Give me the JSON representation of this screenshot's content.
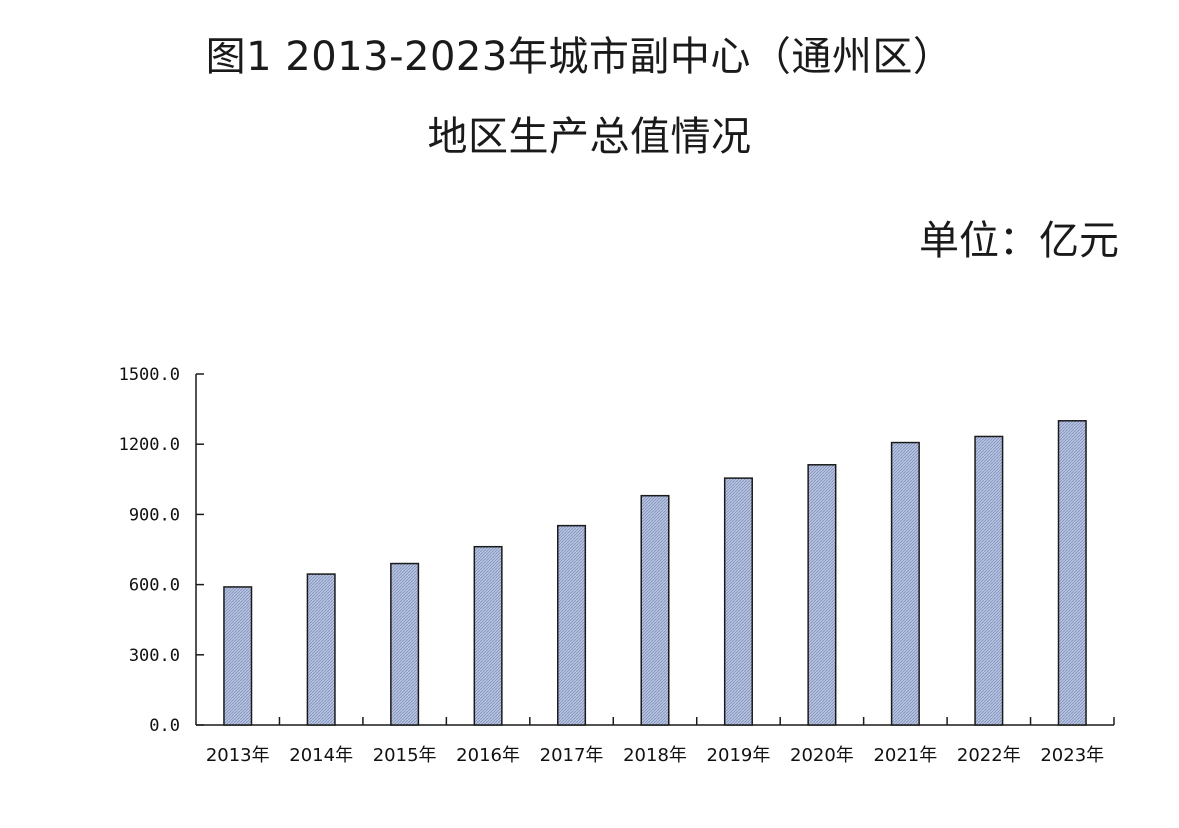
{
  "header": {
    "title_line1": "图1  2013-2023年城市副中心（通州区）",
    "title_line2": "地区生产总值情况",
    "unit": "单位：亿元"
  },
  "colors": {
    "bar_fill": "#a9b8d8",
    "bar_stroke": "#1a1a1a",
    "axis": "#1a1a1a"
  },
  "chart_data": {
    "type": "bar",
    "title": "图1  2013-2023年城市副中心（通州区） 地区生产总值情况",
    "xlabel": "",
    "ylabel": "",
    "unit": "单位：亿元",
    "categories": [
      "2013年",
      "2014年",
      "2015年",
      "2016年",
      "2017年",
      "2018年",
      "2019年",
      "2020年",
      "2021年",
      "2022年",
      "2023年"
    ],
    "values": [
      590,
      645,
      690,
      762,
      852,
      980,
      1055,
      1112,
      1207,
      1233,
      1300
    ],
    "ylim": [
      0,
      1500
    ],
    "yticks": [
      0,
      300,
      600,
      900,
      1200,
      1500
    ],
    "ytick_labels": [
      "0.0",
      "300.0",
      "600.0",
      "900.0",
      "1200.0",
      "1500.0"
    ],
    "grid": false,
    "legend": "none"
  }
}
